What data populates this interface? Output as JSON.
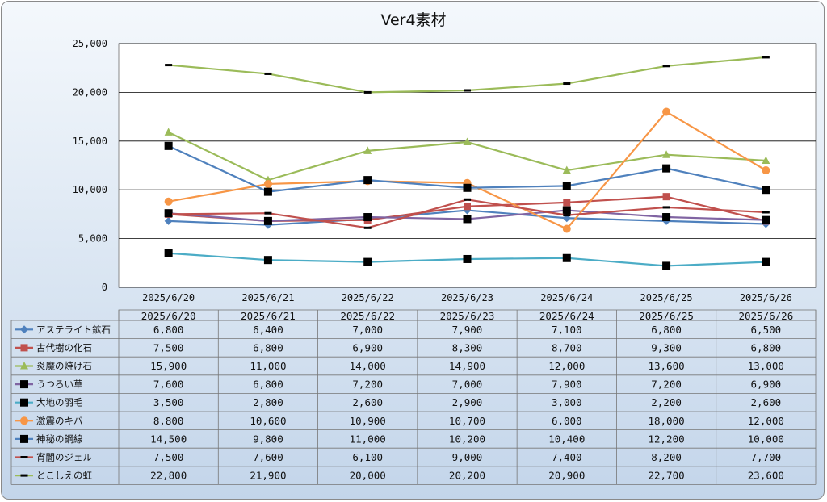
{
  "chart_data": {
    "type": "line",
    "title": "Ver4素材",
    "categories": [
      "2025/6/20",
      "2025/6/21",
      "2025/6/22",
      "2025/6/23",
      "2025/6/24",
      "2025/6/25",
      "2025/6/26"
    ],
    "ylim": [
      0,
      25000
    ],
    "yticks": [
      0,
      5000,
      10000,
      15000,
      20000,
      25000
    ],
    "ytick_labels": [
      "0",
      "5,000",
      "10,000",
      "15,000",
      "20,000",
      "25,000"
    ],
    "grid": true,
    "legend": "data-table",
    "series": [
      {
        "name": "アステライト鉱石",
        "color": "#4f81bd",
        "marker": "diamond",
        "values": [
          6800,
          6400,
          7000,
          7900,
          7100,
          6800,
          6500
        ],
        "labels": [
          "6,800",
          "6,400",
          "7,000",
          "7,900",
          "7,100",
          "6,800",
          "6,500"
        ]
      },
      {
        "name": "古代樹の化石",
        "color": "#c0504d",
        "marker": "square",
        "values": [
          7500,
          6800,
          6900,
          8300,
          8700,
          9300,
          6800
        ],
        "labels": [
          "7,500",
          "6,800",
          "6,900",
          "8,300",
          "8,700",
          "9,300",
          "6,800"
        ]
      },
      {
        "name": "炎魔の焼け石",
        "color": "#9bbb59",
        "marker": "triangle",
        "values": [
          15900,
          11000,
          14000,
          14900,
          12000,
          13600,
          13000
        ],
        "labels": [
          "15,900",
          "11,000",
          "14,000",
          "14,900",
          "12,000",
          "13,600",
          "13,000"
        ]
      },
      {
        "name": "うつろい草",
        "color": "#8064a2",
        "marker": "square-black",
        "values": [
          7600,
          6800,
          7200,
          7000,
          7900,
          7200,
          6900
        ],
        "labels": [
          "7,600",
          "6,800",
          "7,200",
          "7,000",
          "7,900",
          "7,200",
          "6,900"
        ]
      },
      {
        "name": "大地の羽毛",
        "color": "#4bacc6",
        "marker": "square-black",
        "values": [
          3500,
          2800,
          2600,
          2900,
          3000,
          2200,
          2600
        ],
        "labels": [
          "3,500",
          "2,800",
          "2,600",
          "2,900",
          "3,000",
          "2,200",
          "2,600"
        ]
      },
      {
        "name": "激震のキバ",
        "color": "#f79646",
        "marker": "circle",
        "values": [
          8800,
          10600,
          10900,
          10700,
          6000,
          18000,
          12000
        ],
        "labels": [
          "8,800",
          "10,600",
          "10,900",
          "10,700",
          "6,000",
          "18,000",
          "12,000"
        ]
      },
      {
        "name": "神秘の鋼線",
        "color": "#4f81bd",
        "marker": "square-black",
        "values": [
          14500,
          9800,
          11000,
          10200,
          10400,
          12200,
          10000
        ],
        "labels": [
          "14,500",
          "9,800",
          "11,000",
          "10,200",
          "10,400",
          "12,200",
          "10,000"
        ]
      },
      {
        "name": "宵闇のジェル",
        "color": "#c0504d",
        "marker": "dash-black",
        "values": [
          7500,
          7600,
          6100,
          9000,
          7400,
          8200,
          7700
        ],
        "labels": [
          "7,500",
          "7,600",
          "6,100",
          "9,000",
          "7,400",
          "8,200",
          "7,700"
        ]
      },
      {
        "name": "とこしえの虹",
        "color": "#9bbb59",
        "marker": "dash-black",
        "values": [
          22800,
          21900,
          20000,
          20200,
          20900,
          22700,
          23600
        ],
        "labels": [
          "22,800",
          "21,900",
          "20,000",
          "20,200",
          "20,900",
          "22,700",
          "23,600"
        ]
      }
    ]
  }
}
